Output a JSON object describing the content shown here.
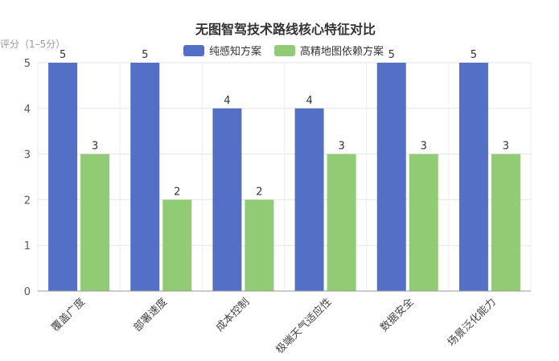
{
  "chart_data": {
    "type": "bar",
    "title": "无图智驾技术路线核心特征对比",
    "ylabel": "评分（1–5分）",
    "xlabel": "",
    "categories": [
      "覆盖广度",
      "部署速度",
      "成本控制",
      "极端天气适应性",
      "数据安全",
      "场景泛化能力"
    ],
    "series": [
      {
        "name": "纯感知方案",
        "values": [
          5,
          5,
          4,
          4,
          5,
          5
        ],
        "color": "#5470c6"
      },
      {
        "name": "高精地图依赖方案",
        "values": [
          3,
          2,
          2,
          3,
          3,
          3
        ],
        "color": "#91cc75"
      }
    ],
    "ylim": [
      0,
      5
    ],
    "yticks": [
      0,
      1,
      2,
      3,
      4,
      5
    ],
    "grid": true,
    "legend_position": "top-center"
  }
}
